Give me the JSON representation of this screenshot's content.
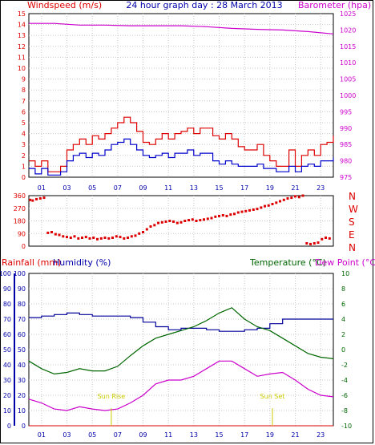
{
  "colors": {
    "wind": "#dd0000",
    "gust": "#dd0000",
    "speed": "#0000cc",
    "baro": "#cc00cc",
    "dir": "#dd0000",
    "humidity": "#000099",
    "temp": "#006600",
    "dew": "#cc00cc",
    "sun": "#cccc00",
    "rain": "#dd0000",
    "grid": "#c8c8c8"
  },
  "chart_data": [
    {
      "type": "line",
      "title": "24 hour graph day : 28 March 2013",
      "left_axis_label": "Windspeed (m/s)",
      "right_axis_label": "Barometer (hpa)",
      "x_ticks": [
        "01",
        "03",
        "05",
        "07",
        "09",
        "11",
        "13",
        "15",
        "17",
        "19",
        "21",
        "23"
      ],
      "x_range_hours": [
        0,
        24
      ],
      "left_ylim": [
        0,
        15
      ],
      "left_ticks": [
        0,
        1,
        2,
        3,
        4,
        5,
        6,
        7,
        8,
        9,
        10,
        11,
        12,
        13,
        14,
        15
      ],
      "right_ylim": [
        975,
        1025
      ],
      "right_ticks": [
        975,
        980,
        985,
        990,
        995,
        1000,
        1005,
        1010,
        1015,
        1020,
        1025
      ],
      "grid": true,
      "series": [
        {
          "name": "Windspeed gust",
          "axis": "left",
          "x": [
            0,
            0.5,
            1,
            1.5,
            2,
            2.5,
            3,
            3.5,
            4,
            4.5,
            5,
            5.5,
            6,
            6.5,
            7,
            7.5,
            8,
            8.5,
            9,
            9.5,
            10,
            10.5,
            11,
            11.5,
            12,
            12.5,
            13,
            13.5,
            14,
            14.5,
            15,
            15.5,
            16,
            16.5,
            17,
            17.5,
            18,
            18.5,
            19,
            19.5,
            20,
            20.5,
            21,
            21.5,
            22,
            22.5,
            23,
            23.5,
            24
          ],
          "values": [
            1.5,
            1.0,
            1.5,
            0.5,
            0.5,
            1.0,
            2.5,
            3.0,
            3.5,
            3.0,
            3.8,
            3.5,
            4.0,
            4.5,
            5.0,
            5.5,
            5.0,
            4.2,
            3.2,
            3.0,
            3.5,
            4.0,
            3.5,
            4.0,
            4.2,
            4.5,
            4.0,
            4.5,
            4.5,
            3.8,
            3.5,
            4.0,
            3.5,
            2.8,
            2.5,
            2.5,
            3.0,
            2.0,
            1.5,
            1.0,
            1.0,
            2.5,
            1.0,
            2.0,
            2.5,
            2.0,
            3.0,
            3.2,
            3.8
          ]
        },
        {
          "name": "Windspeed average",
          "axis": "left",
          "x": [
            0,
            0.5,
            1,
            1.5,
            2,
            2.5,
            3,
            3.5,
            4,
            4.5,
            5,
            5.5,
            6,
            6.5,
            7,
            7.5,
            8,
            8.5,
            9,
            9.5,
            10,
            10.5,
            11,
            11.5,
            12,
            12.5,
            13,
            13.5,
            14,
            14.5,
            15,
            15.5,
            16,
            16.5,
            17,
            17.5,
            18,
            18.5,
            19,
            19.5,
            20,
            20.5,
            21,
            21.5,
            22,
            22.5,
            23,
            23.5,
            24
          ],
          "values": [
            0.8,
            0.3,
            0.8,
            0.2,
            0.2,
            0.5,
            1.5,
            2.0,
            2.2,
            1.8,
            2.2,
            2.0,
            2.5,
            3.0,
            3.2,
            3.5,
            3.0,
            2.5,
            2.0,
            1.8,
            2.0,
            2.2,
            1.8,
            2.2,
            2.2,
            2.5,
            2.0,
            2.2,
            2.2,
            1.5,
            1.2,
            1.5,
            1.2,
            1.0,
            1.0,
            1.0,
            1.2,
            0.8,
            0.8,
            0.5,
            0.5,
            1.0,
            0.5,
            1.0,
            1.2,
            1.0,
            1.5,
            1.5,
            1.8
          ]
        },
        {
          "name": "Barometer",
          "axis": "right",
          "x": [
            0,
            2,
            4,
            6,
            8,
            10,
            12,
            14,
            16,
            18,
            20,
            22,
            24
          ],
          "values": [
            1022,
            1022,
            1021.5,
            1021.5,
            1021.3,
            1021.3,
            1021.3,
            1021,
            1020.5,
            1020.2,
            1020,
            1019.5,
            1018.8
          ]
        }
      ]
    },
    {
      "type": "scatter",
      "right_labels": [
        "N",
        "W",
        "S",
        "E",
        "N"
      ],
      "ylim": [
        0,
        360
      ],
      "y_ticks": [
        0,
        90,
        180,
        270,
        360
      ],
      "x_range_hours": [
        0,
        24
      ],
      "grid": true,
      "series": [
        {
          "name": "Wind direction",
          "x": [
            0.1,
            0.3,
            0.6,
            0.9,
            1.2,
            1.5,
            1.8,
            2.1,
            2.4,
            2.7,
            3.0,
            3.3,
            3.6,
            3.9,
            4.2,
            4.5,
            4.8,
            5.1,
            5.4,
            5.7,
            6.0,
            6.3,
            6.6,
            6.9,
            7.2,
            7.5,
            7.8,
            8.1,
            8.4,
            8.7,
            9.0,
            9.3,
            9.6,
            9.9,
            10.2,
            10.5,
            10.8,
            11.1,
            11.4,
            11.7,
            12.0,
            12.3,
            12.6,
            12.9,
            13.2,
            13.5,
            13.8,
            14.1,
            14.4,
            14.7,
            15.0,
            15.3,
            15.6,
            15.9,
            16.2,
            16.5,
            16.8,
            17.1,
            17.4,
            17.7,
            18.0,
            18.3,
            18.6,
            18.9,
            19.2,
            19.5,
            19.8,
            20.1,
            20.4,
            20.7,
            21.0,
            21.3,
            21.6,
            21.9,
            22.2,
            22.5,
            22.8,
            23.1,
            23.4,
            23.7
          ],
          "values": [
            330,
            325,
            335,
            340,
            345,
            95,
            100,
            85,
            80,
            70,
            65,
            60,
            70,
            55,
            60,
            65,
            55,
            60,
            50,
            55,
            60,
            55,
            60,
            70,
            65,
            55,
            60,
            70,
            75,
            90,
            100,
            120,
            140,
            150,
            165,
            170,
            175,
            180,
            175,
            165,
            170,
            180,
            185,
            190,
            180,
            185,
            190,
            195,
            200,
            210,
            215,
            220,
            215,
            225,
            230,
            240,
            245,
            250,
            255,
            260,
            265,
            275,
            285,
            290,
            300,
            310,
            320,
            330,
            340,
            345,
            355,
            350,
            360,
            20,
            15,
            20,
            25,
            50,
            60,
            55
          ]
        }
      ]
    },
    {
      "type": "line",
      "left_labels": [
        "Rainfall (mm)",
        "Humidity (%)"
      ],
      "right_labels": [
        "Temperature (°C)",
        "Dew Point (°C)"
      ],
      "x_ticks": [
        "01",
        "03",
        "05",
        "07",
        "09",
        "11",
        "13",
        "15",
        "17",
        "19",
        "21",
        "23"
      ],
      "x_range_hours": [
        0,
        24
      ],
      "left_ylim": [
        0,
        100
      ],
      "left_ticks": [
        0,
        10,
        20,
        30,
        40,
        50,
        60,
        70,
        80,
        90,
        100
      ],
      "right_ylim": [
        -10,
        10
      ],
      "right_ticks": [
        -10,
        -8,
        -6,
        -4,
        -2,
        0,
        2,
        4,
        6,
        8,
        10
      ],
      "grid": true,
      "annotations": [
        {
          "label": "Sun Rise",
          "x": 6.5
        },
        {
          "label": "Sun Set",
          "x": 19.2
        }
      ],
      "series": [
        {
          "name": "Humidity",
          "axis": "left",
          "x": [
            0,
            1,
            2,
            3,
            4,
            5,
            6,
            7,
            8,
            9,
            10,
            11,
            12,
            13,
            14,
            15,
            16,
            17,
            18,
            19,
            20,
            21,
            22,
            23,
            24
          ],
          "values": [
            71,
            72,
            73,
            74,
            73,
            72,
            72,
            72,
            71,
            68,
            65,
            63,
            64,
            64,
            63,
            62,
            62,
            63,
            64,
            67,
            70,
            70,
            70,
            70,
            70
          ]
        },
        {
          "name": "Temperature",
          "axis": "right",
          "x": [
            0,
            1,
            2,
            3,
            4,
            5,
            6,
            7,
            8,
            9,
            10,
            11,
            12,
            13,
            14,
            15,
            16,
            17,
            18,
            19,
            20,
            21,
            22,
            23,
            24
          ],
          "values": [
            -1.5,
            -2.5,
            -3.2,
            -3.0,
            -2.5,
            -2.8,
            -2.8,
            -2.2,
            -0.8,
            0.5,
            1.5,
            2.0,
            2.5,
            3.0,
            3.8,
            4.8,
            5.5,
            4.0,
            3.0,
            2.5,
            1.5,
            0.5,
            -0.5,
            -1.0,
            -1.2
          ]
        },
        {
          "name": "Dew Point",
          "axis": "right",
          "x": [
            0,
            1,
            2,
            3,
            4,
            5,
            6,
            7,
            8,
            9,
            10,
            11,
            12,
            13,
            14,
            15,
            16,
            17,
            18,
            19,
            20,
            21,
            22,
            23,
            24
          ],
          "values": [
            -6.5,
            -7.0,
            -7.8,
            -8.0,
            -7.5,
            -7.8,
            -8.0,
            -7.8,
            -7.0,
            -6.0,
            -4.5,
            -4.0,
            -4.0,
            -3.5,
            -2.5,
            -1.5,
            -1.5,
            -2.5,
            -3.5,
            -3.2,
            -3.0,
            -4.0,
            -5.2,
            -6.0,
            -6.2
          ]
        },
        {
          "name": "Rainfall",
          "axis": "left",
          "x": [
            0,
            24
          ],
          "values": [
            0,
            0
          ]
        }
      ]
    }
  ]
}
